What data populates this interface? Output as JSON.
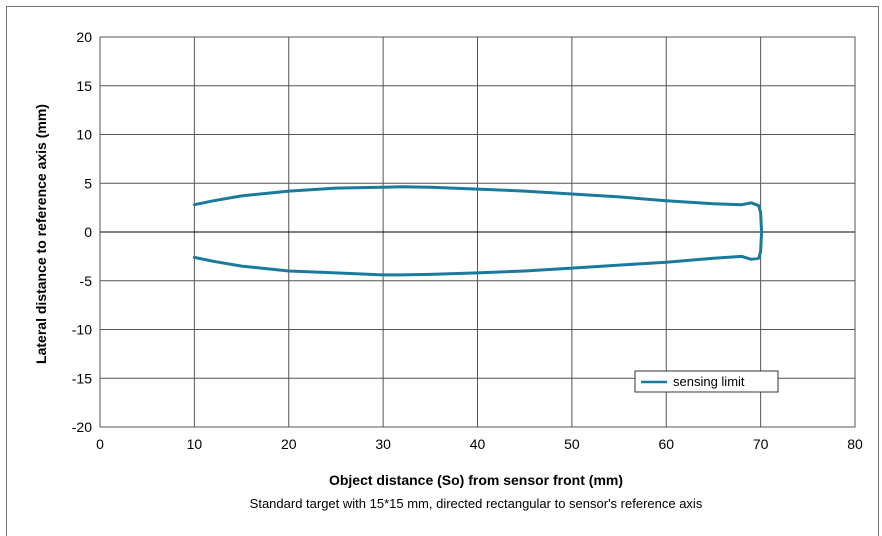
{
  "chart_data": {
    "type": "line",
    "title": "",
    "xlabel": "Object distance (So) from sensor front (mm)",
    "ylabel": "Lateral distance to reference axis (mm)",
    "caption": "Standard target with 15*15 mm, directed rectangular to sensor's reference axis",
    "xlim": [
      0,
      80
    ],
    "ylim": [
      -20,
      20
    ],
    "xticks": [
      0,
      10,
      20,
      30,
      40,
      50,
      60,
      70,
      80
    ],
    "yticks": [
      20,
      15,
      10,
      5,
      0,
      -5,
      -10,
      -15,
      -20
    ],
    "grid": true,
    "legend": {
      "position": "lower-right"
    },
    "series": [
      {
        "name": "sensing limit",
        "color": "#1a7a9e",
        "points": [
          [
            10,
            2.8
          ],
          [
            12,
            3.2
          ],
          [
            15,
            3.7
          ],
          [
            20,
            4.2
          ],
          [
            25,
            4.5
          ],
          [
            30,
            4.6
          ],
          [
            32,
            4.65
          ],
          [
            35,
            4.6
          ],
          [
            40,
            4.4
          ],
          [
            45,
            4.2
          ],
          [
            50,
            3.9
          ],
          [
            55,
            3.6
          ],
          [
            60,
            3.2
          ],
          [
            65,
            2.9
          ],
          [
            68,
            2.8
          ],
          [
            69,
            3.0
          ],
          [
            69.8,
            2.7
          ],
          [
            70,
            2.0
          ],
          [
            70.1,
            0
          ],
          [
            70,
            -2.0
          ],
          [
            69.8,
            -2.7
          ],
          [
            69,
            -2.8
          ],
          [
            68,
            -2.5
          ],
          [
            65,
            -2.7
          ],
          [
            60,
            -3.1
          ],
          [
            55,
            -3.4
          ],
          [
            50,
            -3.7
          ],
          [
            45,
            -4.0
          ],
          [
            40,
            -4.2
          ],
          [
            35,
            -4.35
          ],
          [
            32,
            -4.4
          ],
          [
            30,
            -4.4
          ],
          [
            25,
            -4.2
          ],
          [
            20,
            -4.0
          ],
          [
            15,
            -3.5
          ],
          [
            12,
            -3.0
          ],
          [
            10,
            -2.6
          ]
        ]
      }
    ]
  }
}
